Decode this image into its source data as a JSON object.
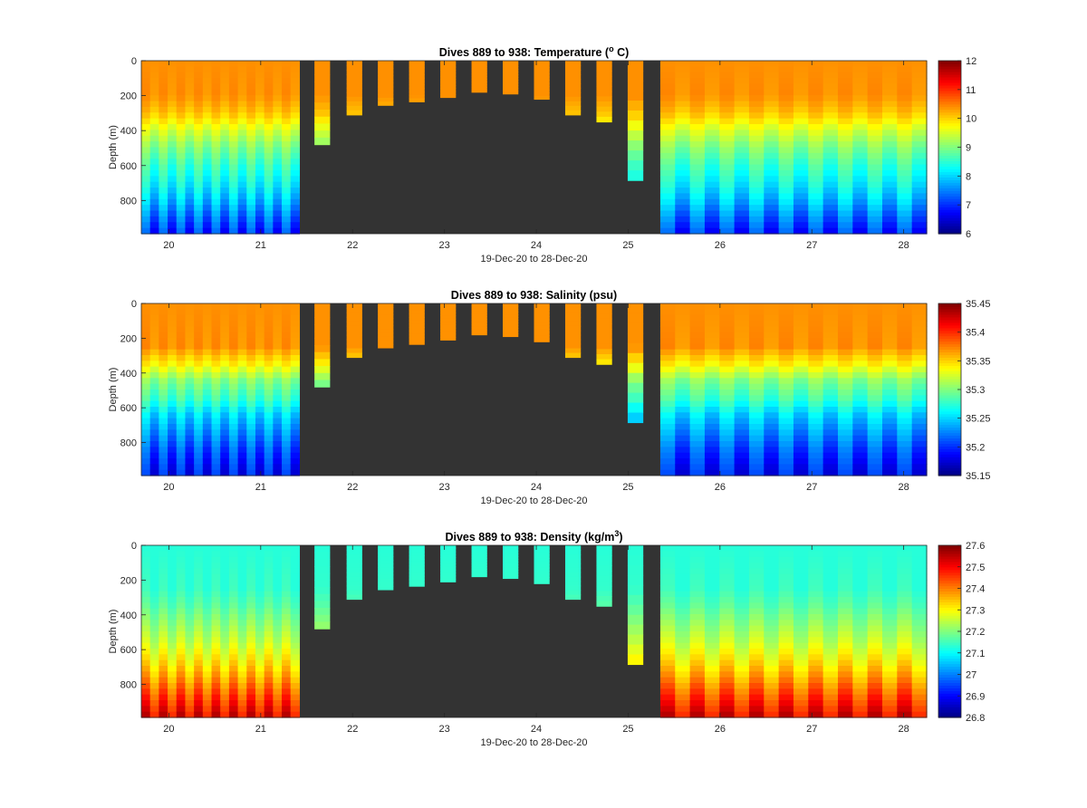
{
  "xlabel": "19-Dec-20 to 28-Dec-20",
  "ylabel": "Depth (m)",
  "xticks": [
    20,
    21,
    22,
    23,
    24,
    25,
    26,
    27,
    28
  ],
  "yticks": [
    0,
    200,
    400,
    600,
    800
  ],
  "xlim": [
    19.7,
    28.25
  ],
  "ylim": [
    0,
    990
  ],
  "background_color": "#333333",
  "colormap": "jet",
  "chart_data": [
    {
      "type": "heatmap",
      "title": "Dives 889 to 938: Temperature (° C)",
      "title_main": "Dives 889 to 938: Temperature (",
      "title_sup": "o",
      "title_end": " C)",
      "xlabel": "19-Dec-20 to 28-Dec-20",
      "ylabel": "Depth (m)",
      "clim": [
        6,
        12
      ],
      "colorbar_ticks": [
        6,
        7,
        8,
        9,
        10,
        11,
        12
      ],
      "full_dive_days": [
        [
          19.7,
          21.42
        ],
        [
          25.35,
          28.25
        ]
      ],
      "shallow_dives": [
        {
          "day": 21.67,
          "max_depth": 480
        },
        {
          "day": 22.02,
          "max_depth": 310
        },
        {
          "day": 22.36,
          "max_depth": 255
        },
        {
          "day": 22.7,
          "max_depth": 235
        },
        {
          "day": 23.04,
          "max_depth": 210
        },
        {
          "day": 23.38,
          "max_depth": 180
        },
        {
          "day": 23.72,
          "max_depth": 190
        },
        {
          "day": 24.06,
          "max_depth": 220
        },
        {
          "day": 24.4,
          "max_depth": 310
        },
        {
          "day": 24.74,
          "max_depth": 350
        },
        {
          "day": 25.08,
          "max_depth": 685
        }
      ],
      "depth_profile": [
        [
          0,
          10.4
        ],
        [
          200,
          10.4
        ],
        [
          300,
          10.1
        ],
        [
          400,
          9.5
        ],
        [
          500,
          9.0
        ],
        [
          600,
          8.6
        ],
        [
          700,
          8.3
        ],
        [
          800,
          7.9
        ],
        [
          900,
          7.4
        ],
        [
          990,
          7.0
        ]
      ]
    },
    {
      "type": "heatmap",
      "title": "Dives 889 to 938: Salinity (psu)",
      "title_main": "Dives 889 to 938: Salinity (psu)",
      "title_sup": "",
      "title_end": "",
      "xlabel": "19-Dec-20 to 28-Dec-20",
      "ylabel": "Depth (m)",
      "clim": [
        35.15,
        35.45
      ],
      "colorbar_ticks": [
        35.15,
        35.2,
        35.25,
        35.3,
        35.35,
        35.4,
        35.45
      ],
      "full_dive_days": [
        [
          19.7,
          21.42
        ],
        [
          25.35,
          28.25
        ]
      ],
      "shallow_dives": [
        {
          "day": 21.67,
          "max_depth": 480
        },
        {
          "day": 22.02,
          "max_depth": 310
        },
        {
          "day": 22.36,
          "max_depth": 255
        },
        {
          "day": 22.7,
          "max_depth": 235
        },
        {
          "day": 23.04,
          "max_depth": 210
        },
        {
          "day": 23.38,
          "max_depth": 180
        },
        {
          "day": 23.72,
          "max_depth": 190
        },
        {
          "day": 24.06,
          "max_depth": 220
        },
        {
          "day": 24.4,
          "max_depth": 310
        },
        {
          "day": 24.74,
          "max_depth": 350
        },
        {
          "day": 25.08,
          "max_depth": 685
        }
      ],
      "depth_profile": [
        [
          0,
          35.37
        ],
        [
          250,
          35.37
        ],
        [
          350,
          35.34
        ],
        [
          450,
          35.3
        ],
        [
          550,
          35.28
        ],
        [
          650,
          35.25
        ],
        [
          750,
          35.23
        ],
        [
          850,
          35.21
        ],
        [
          990,
          35.19
        ]
      ]
    },
    {
      "type": "heatmap",
      "title": "Dives 889 to 938: Density (kg/m3)",
      "title_main": "Dives 889 to 938: Density (kg/m",
      "title_sup": "3",
      "title_end": ")",
      "xlabel": "19-Dec-20 to 28-Dec-20",
      "ylabel": "Depth (m)",
      "clim": [
        26.8,
        27.6
      ],
      "colorbar_ticks": [
        26.8,
        26.9,
        27,
        27.1,
        27.2,
        27.3,
        27.4,
        27.5,
        27.6
      ],
      "full_dive_days": [
        [
          19.7,
          21.42
        ],
        [
          25.35,
          28.25
        ]
      ],
      "shallow_dives": [
        {
          "day": 21.67,
          "max_depth": 480
        },
        {
          "day": 22.02,
          "max_depth": 310
        },
        {
          "day": 22.36,
          "max_depth": 255
        },
        {
          "day": 22.7,
          "max_depth": 235
        },
        {
          "day": 23.04,
          "max_depth": 210
        },
        {
          "day": 23.38,
          "max_depth": 180
        },
        {
          "day": 23.72,
          "max_depth": 190
        },
        {
          "day": 24.06,
          "max_depth": 220
        },
        {
          "day": 24.4,
          "max_depth": 310
        },
        {
          "day": 24.74,
          "max_depth": 350
        },
        {
          "day": 25.08,
          "max_depth": 685
        }
      ],
      "depth_profile": [
        [
          0,
          27.13
        ],
        [
          250,
          27.14
        ],
        [
          350,
          27.17
        ],
        [
          450,
          27.21
        ],
        [
          550,
          27.25
        ],
        [
          650,
          27.3
        ],
        [
          750,
          27.36
        ],
        [
          850,
          27.43
        ],
        [
          990,
          27.52
        ]
      ]
    }
  ]
}
